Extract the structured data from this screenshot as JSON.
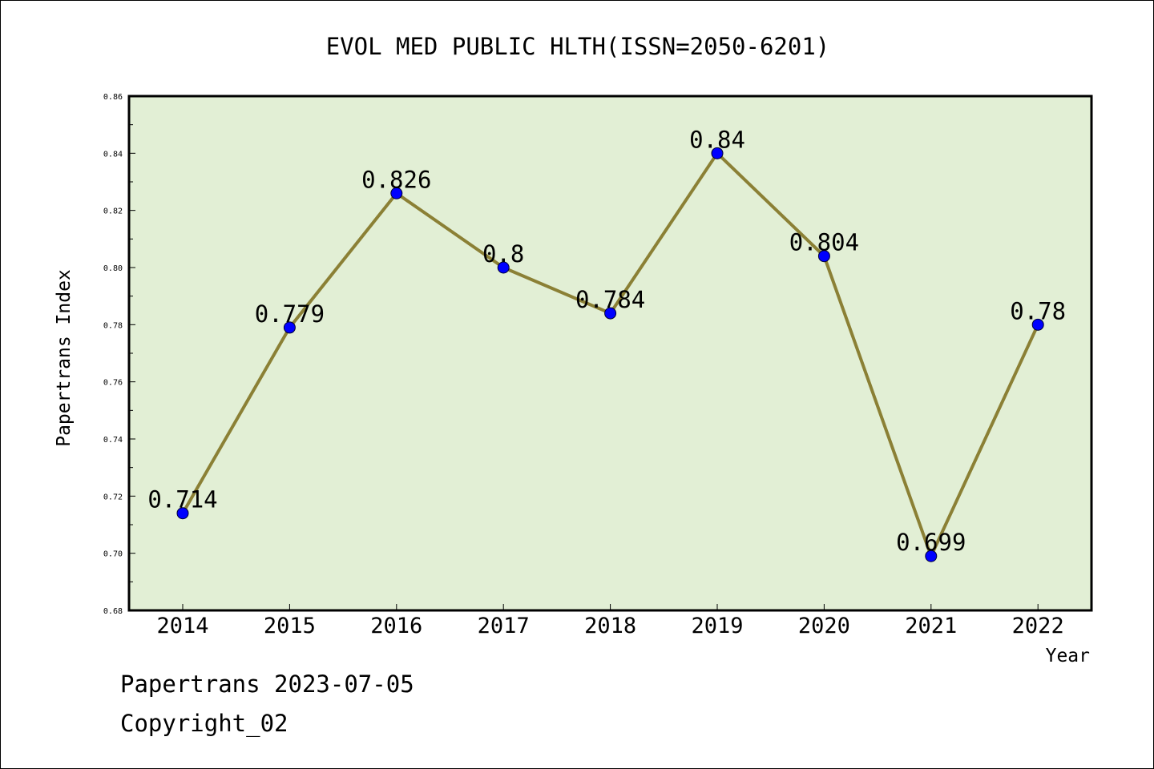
{
  "chart_data": {
    "type": "line",
    "title": "EVOL MED PUBLIC HLTH(ISSN=2050-6201)",
    "xlabel": "Year",
    "ylabel": "Papertrans Index",
    "categories": [
      "2014",
      "2015",
      "2016",
      "2017",
      "2018",
      "2019",
      "2020",
      "2021",
      "2022"
    ],
    "series": [
      {
        "values": [
          0.714,
          0.779,
          0.826,
          0.8,
          0.784,
          0.84,
          0.804,
          0.699,
          0.78
        ],
        "data_labels": [
          "0.714",
          "0.779",
          "0.826",
          "0.8",
          "0.784",
          "0.84",
          "0.804",
          "0.699",
          "0.78"
        ]
      }
    ],
    "ylim": [
      0.68,
      0.86
    ],
    "yticks": [
      "0.68",
      "0.70",
      "0.72",
      "0.74",
      "0.76",
      "0.78",
      "0.80",
      "0.82",
      "0.84",
      "0.86"
    ],
    "grid": false,
    "colors": {
      "plot_background": "#e2efd5",
      "line": "#8b8035",
      "marker": "#0000ff",
      "axis": "#000000"
    }
  },
  "footer": {
    "credit": "Papertrans 2023-07-05",
    "copyright": "Copyright_02"
  }
}
